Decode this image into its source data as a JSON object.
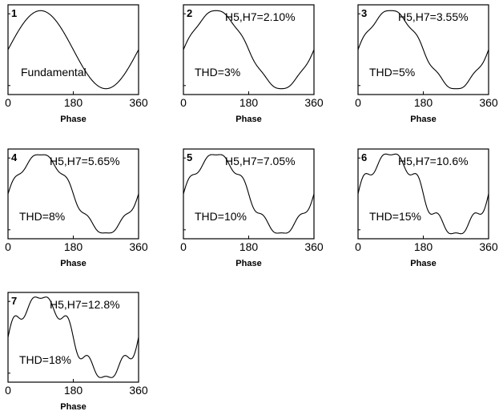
{
  "chart_data": [
    {
      "type": "line",
      "panel": "1",
      "xlabel": "Phase",
      "x_ticks": [
        "0",
        "180",
        "360"
      ],
      "xlim": [
        0,
        360
      ],
      "ylim": [
        -1.15,
        1.15
      ],
      "annotations": [
        "Fundamental"
      ],
      "h5": 0,
      "h7": 0,
      "series": [
        {
          "values_formula": "sin(x) + h5*sin(5x) + h7*sin(7x)"
        }
      ]
    },
    {
      "type": "line",
      "panel": "2",
      "xlabel": "Phase",
      "x_ticks": [
        "0",
        "180",
        "360"
      ],
      "xlim": [
        0,
        360
      ],
      "ylim": [
        -1.15,
        1.15
      ],
      "annotations": [
        "H5,H7=2.10%",
        "THD=3%"
      ],
      "h5": 0.021,
      "h7": 0.021
    },
    {
      "type": "line",
      "panel": "3",
      "xlabel": "Phase",
      "x_ticks": [
        "0",
        "180",
        "360"
      ],
      "xlim": [
        0,
        360
      ],
      "ylim": [
        -1.15,
        1.15
      ],
      "annotations": [
        "H5,H7=3.55%",
        "THD=5%"
      ],
      "h5": 0.0355,
      "h7": 0.0355
    },
    {
      "type": "line",
      "panel": "4",
      "xlabel": "Phase",
      "x_ticks": [
        "0",
        "180",
        "360"
      ],
      "xlim": [
        0,
        360
      ],
      "ylim": [
        -1.15,
        1.15
      ],
      "annotations": [
        "H5,H7=5.65%",
        "THD=8%"
      ],
      "h5": 0.0565,
      "h7": 0.0565
    },
    {
      "type": "line",
      "panel": "5",
      "xlabel": "Phase",
      "x_ticks": [
        "0",
        "180",
        "360"
      ],
      "xlim": [
        0,
        360
      ],
      "ylim": [
        -1.15,
        1.15
      ],
      "annotations": [
        "H5,H7=7.05%",
        "THD=10%"
      ],
      "h5": 0.0705,
      "h7": 0.0705
    },
    {
      "type": "line",
      "panel": "6",
      "xlabel": "Phase",
      "x_ticks": [
        "0",
        "180",
        "360"
      ],
      "xlim": [
        0,
        360
      ],
      "ylim": [
        -1.15,
        1.15
      ],
      "annotations": [
        "H5,H7=10.6%",
        "THD=15%"
      ],
      "h5": 0.106,
      "h7": 0.106
    },
    {
      "type": "line",
      "panel": "7",
      "xlabel": "Phase",
      "x_ticks": [
        "0",
        "180",
        "360"
      ],
      "xlim": [
        0,
        360
      ],
      "ylim": [
        -1.15,
        1.15
      ],
      "annotations": [
        "H5,H7=12.8%",
        "THD=18%"
      ],
      "h5": 0.128,
      "h7": 0.128
    }
  ]
}
